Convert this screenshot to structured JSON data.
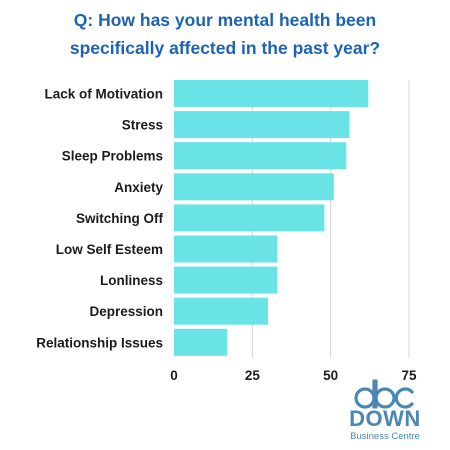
{
  "title_lines": [
    "Q: How has your mental health been",
    "specifically affected in the past year?"
  ],
  "colors": {
    "title": "#1d63b4",
    "bar": "#6ae3e6",
    "grid": "#d4d4d4",
    "logo": "#4a87b5"
  },
  "logo": {
    "mark": "dbc",
    "word": "DOWN",
    "sub": "Business Centre"
  },
  "chart_data": {
    "type": "bar",
    "orientation": "horizontal",
    "title": "Q: How has your mental health been specifically affected in the past year?",
    "categories": [
      "Lack of Motivation",
      "Stress",
      "Sleep Problems",
      "Anxiety",
      "Switching Off",
      "Low Self Esteem",
      "Lonliness",
      "Depression",
      "Relationship Issues"
    ],
    "values": [
      62,
      56,
      55,
      51,
      48,
      33,
      33,
      30,
      17
    ],
    "xlim": [
      0,
      75
    ],
    "xticks": [
      0,
      25,
      50,
      75
    ],
    "grid": "vertical",
    "legend": "none"
  }
}
